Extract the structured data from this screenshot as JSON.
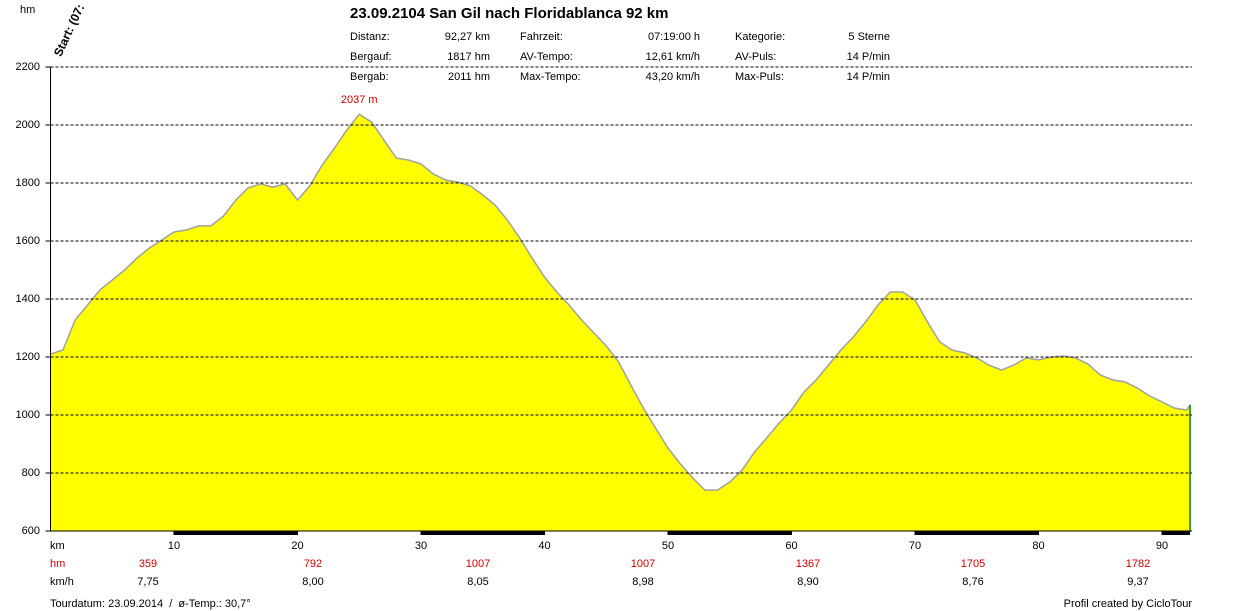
{
  "chart_data": {
    "type": "area",
    "title": "23.09.2104 San Gil nach Floridablanca 92 km",
    "y_label": "hm",
    "x_label": "km",
    "start_label": "Start: (07:",
    "peak": {
      "label": "2037 m",
      "value": 2037,
      "x": 25
    },
    "stats": [
      [
        "Distanz:",
        "92,27 km",
        "Fahrzeit:",
        "07:19:00 h",
        "Kategorie:",
        "5 Sterne"
      ],
      [
        "Bergauf:",
        "1817 hm",
        "AV-Tempo:",
        "12,61 km/h",
        "AV-Puls:",
        "14 P/min"
      ],
      [
        "Bergab:",
        "2011 hm",
        "Max-Tempo:",
        "43,20 km/h",
        "Max-Puls:",
        "14 P/min"
      ]
    ],
    "x": [
      0,
      1,
      2,
      3,
      4,
      5,
      6,
      7,
      8,
      9,
      10,
      11,
      12,
      13,
      14,
      15,
      16,
      17,
      18,
      19,
      20,
      21,
      22,
      23,
      24,
      25,
      26,
      27,
      28,
      29,
      30,
      31,
      32,
      33,
      34,
      35,
      36,
      37,
      38,
      39,
      40,
      41,
      42,
      43,
      44,
      45,
      46,
      47,
      48,
      49,
      50,
      51,
      52,
      53,
      54,
      55,
      56,
      57,
      58,
      59,
      60,
      61,
      62,
      63,
      64,
      65,
      66,
      67,
      68,
      69,
      70,
      71,
      72,
      73,
      74,
      75,
      76,
      77,
      78,
      79,
      80,
      81,
      82,
      83,
      84,
      85,
      86,
      87,
      88,
      89,
      90,
      91,
      92,
      92.27
    ],
    "values": [
      1210,
      1224,
      1328,
      1379,
      1431,
      1466,
      1500,
      1541,
      1576,
      1603,
      1631,
      1638,
      1652,
      1652,
      1686,
      1741,
      1783,
      1797,
      1786,
      1797,
      1741,
      1790,
      1862,
      1921,
      1983,
      2037,
      2010,
      1948,
      1886,
      1879,
      1866,
      1831,
      1810,
      1803,
      1790,
      1759,
      1724,
      1672,
      1610,
      1541,
      1476,
      1424,
      1379,
      1328,
      1283,
      1238,
      1183,
      1103,
      1024,
      955,
      886,
      831,
      783,
      741,
      741,
      769,
      810,
      872,
      921,
      972,
      1017,
      1079,
      1121,
      1172,
      1224,
      1269,
      1321,
      1379,
      1424,
      1424,
      1397,
      1321,
      1252,
      1224,
      1214,
      1197,
      1172,
      1155,
      1172,
      1197,
      1190,
      1200,
      1203,
      1197,
      1176,
      1138,
      1121,
      1114,
      1093,
      1066,
      1045,
      1024,
      1017,
      1035
    ],
    "color": "#ffff00",
    "line_color": "#a0a0a0",
    "xlim": [
      0,
      92.27
    ],
    "xticks": [
      10,
      20,
      30,
      40,
      50,
      60,
      70,
      80,
      90
    ],
    "ylim": [
      600,
      2200
    ],
    "yticks": [
      600,
      800,
      1000,
      1200,
      1400,
      1600,
      1800,
      2000,
      2200
    ],
    "grid": true,
    "segment_rows": [
      {
        "label": "hm",
        "values": [
          359,
          792,
          1007,
          1007,
          1367,
          1705,
          1782
        ]
      },
      {
        "label": "km/h",
        "values": [
          "7,75",
          "8,00",
          "8,05",
          "8,98",
          "8,90",
          "8,76",
          "9,37"
        ]
      }
    ],
    "footer_left": "Tourdatum: 23.09.2014  /  ø-Temp.: 30,7°",
    "footer_right": "Profil created by CicloTour"
  }
}
